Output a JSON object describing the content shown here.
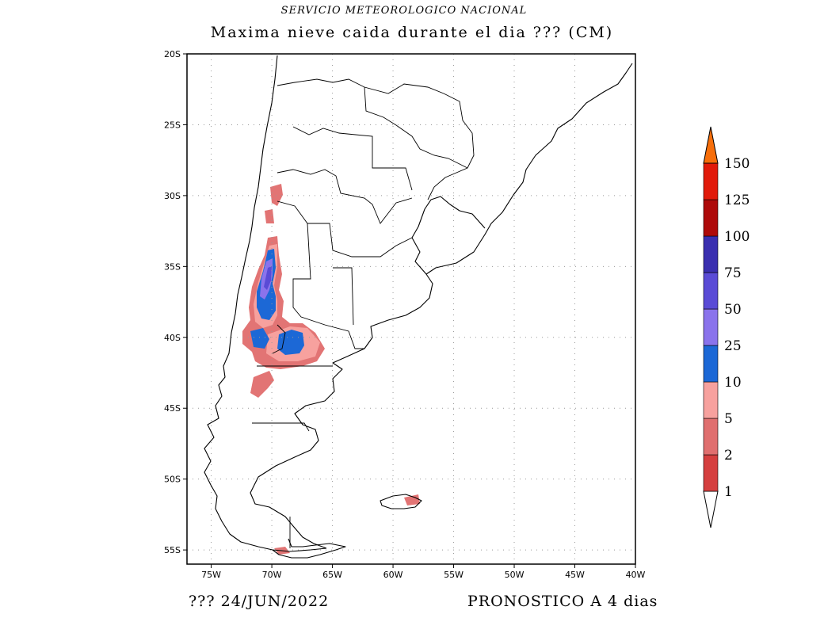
{
  "header": {
    "agency": "SERVICIO METEOROLOGICO NACIONAL",
    "title": "Maxima nieve caida durante el dia ??? (CM)"
  },
  "footer": {
    "date": "???  24/JUN/2022",
    "forecast": "PRONOSTICO A 4 dias"
  },
  "map": {
    "lat_labels": [
      "20S",
      "25S",
      "30S",
      "35S",
      "40S",
      "45S",
      "50S",
      "55S"
    ],
    "lon_labels": [
      "75W",
      "70W",
      "65W",
      "60W",
      "55W",
      "50W",
      "45W",
      "40W"
    ],
    "extent": {
      "lon": [
        -77,
        -40
      ],
      "lat": [
        -56,
        -20
      ]
    },
    "gridlines": "dotted"
  },
  "colorbar": {
    "levels": [
      "1",
      "2",
      "5",
      "10",
      "25",
      "50",
      "75",
      "100",
      "125",
      "150"
    ],
    "colors": [
      "#d53f3f",
      "#e06f6f",
      "#f7a19e",
      "#1c68d6",
      "#8a73ec",
      "#5a4bd6",
      "#3a2fb0",
      "#ae0a0a",
      "#e11a0a",
      "#f76e0a"
    ]
  }
}
